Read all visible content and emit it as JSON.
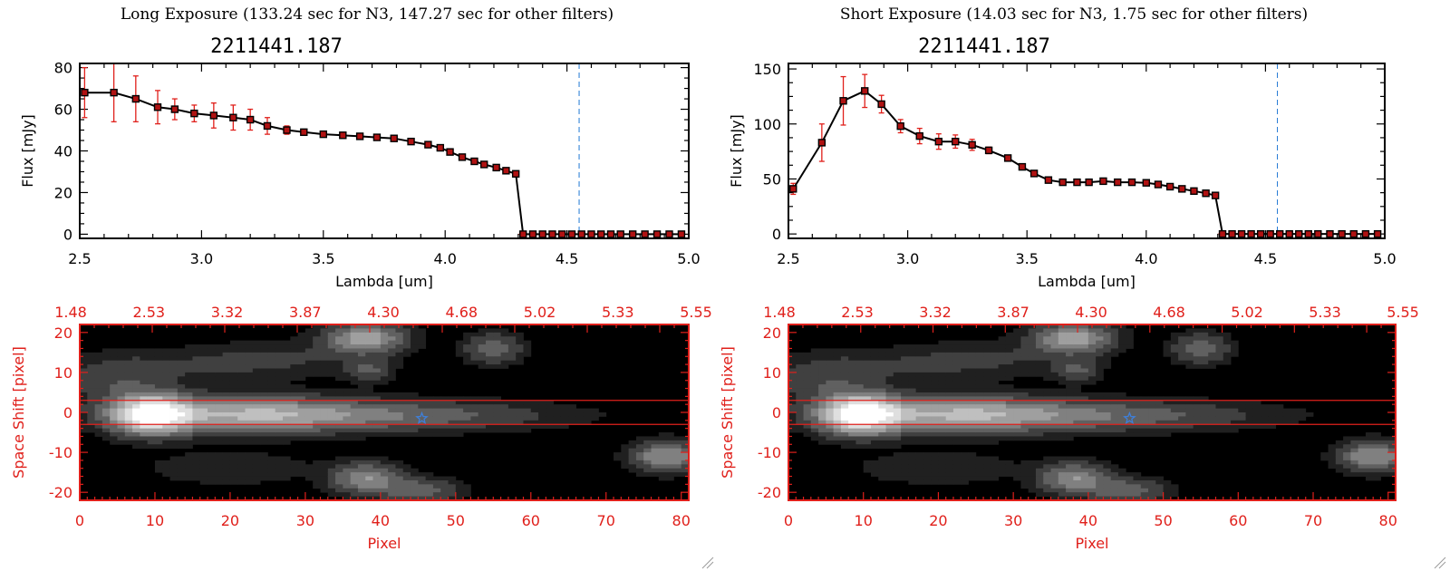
{
  "colors": {
    "frame": "#000000",
    "error_bars": "#e0201b",
    "marker_fill": "#b01212",
    "marker_edge": "#000000",
    "reference_line": "#1f77d4",
    "image_frame": "#e0201b",
    "extraction_box": "#e0201b",
    "star_marker": "#3f7fd8"
  },
  "panels": [
    {
      "title": "Long Exposure (133.24 sec for N3, 147.27 sec for other filters)",
      "object_id": "2211441.187",
      "spectrum_xlabel": "Lambda [um]",
      "spectrum_ylabel": "Flux [mJy]",
      "image_xlabel": "Pixel",
      "image_ylabel": "Space Shift [pixel]"
    },
    {
      "title": "Short Exposure (14.03 sec for N3, 1.75 sec for other filters)",
      "object_id": "2211441.187",
      "spectrum_xlabel": "Lambda [um]",
      "spectrum_ylabel": "Flux [mJy]",
      "image_xlabel": "Pixel",
      "image_ylabel": "Space Shift [pixel]"
    }
  ],
  "chart_data": [
    {
      "type": "line",
      "title": "2211441.187",
      "xlabel": "Lambda [um]",
      "ylabel": "Flux [mJy]",
      "xlim": [
        2.5,
        5.0
      ],
      "ylim": [
        -2,
        82
      ],
      "xticks": [
        "2.5",
        "3.0",
        "3.5",
        "4.0",
        "4.5",
        "5.0"
      ],
      "yticks": [
        "0",
        "20",
        "40",
        "60",
        "80"
      ],
      "reference_line_x": 4.55,
      "points": [
        {
          "x": 2.52,
          "y": 68,
          "err": 12
        },
        {
          "x": 2.64,
          "y": 68,
          "err": 14
        },
        {
          "x": 2.73,
          "y": 65,
          "err": 11
        },
        {
          "x": 2.82,
          "y": 61,
          "err": 8
        },
        {
          "x": 2.89,
          "y": 60,
          "err": 5
        },
        {
          "x": 2.97,
          "y": 58,
          "err": 4
        },
        {
          "x": 3.05,
          "y": 57,
          "err": 6
        },
        {
          "x": 3.13,
          "y": 56,
          "err": 6
        },
        {
          "x": 3.2,
          "y": 55,
          "err": 5
        },
        {
          "x": 3.27,
          "y": 52,
          "err": 4
        },
        {
          "x": 3.35,
          "y": 50,
          "err": 2
        },
        {
          "x": 3.42,
          "y": 49,
          "err": 0
        },
        {
          "x": 3.5,
          "y": 48,
          "err": 0
        },
        {
          "x": 3.58,
          "y": 47.5,
          "err": 0
        },
        {
          "x": 3.65,
          "y": 47,
          "err": 0
        },
        {
          "x": 3.72,
          "y": 46.5,
          "err": 0
        },
        {
          "x": 3.79,
          "y": 46,
          "err": 0
        },
        {
          "x": 3.86,
          "y": 44.5,
          "err": 0
        },
        {
          "x": 3.93,
          "y": 43,
          "err": 0
        },
        {
          "x": 3.98,
          "y": 41.5,
          "err": 0
        },
        {
          "x": 4.02,
          "y": 39.5,
          "err": 0
        },
        {
          "x": 4.07,
          "y": 37,
          "err": 0
        },
        {
          "x": 4.12,
          "y": 35,
          "err": 0
        },
        {
          "x": 4.16,
          "y": 33.5,
          "err": 0
        },
        {
          "x": 4.21,
          "y": 32,
          "err": 0
        },
        {
          "x": 4.25,
          "y": 30.5,
          "err": 0
        },
        {
          "x": 4.29,
          "y": 29,
          "err": 0
        },
        {
          "x": 4.32,
          "y": 0,
          "err": 0
        },
        {
          "x": 4.36,
          "y": 0,
          "err": 0
        },
        {
          "x": 4.4,
          "y": 0,
          "err": 0
        },
        {
          "x": 4.44,
          "y": 0,
          "err": 0
        },
        {
          "x": 4.48,
          "y": 0,
          "err": 0
        },
        {
          "x": 4.52,
          "y": 0,
          "err": 0
        },
        {
          "x": 4.56,
          "y": 0,
          "err": 0
        },
        {
          "x": 4.6,
          "y": 0,
          "err": 0
        },
        {
          "x": 4.64,
          "y": 0,
          "err": 0
        },
        {
          "x": 4.68,
          "y": 0,
          "err": 0
        },
        {
          "x": 4.72,
          "y": 0,
          "err": 0
        },
        {
          "x": 4.77,
          "y": 0,
          "err": 0
        },
        {
          "x": 4.82,
          "y": 0,
          "err": 0
        },
        {
          "x": 4.87,
          "y": 0,
          "err": 0
        },
        {
          "x": 4.92,
          "y": 0,
          "err": 0
        },
        {
          "x": 4.97,
          "y": 0,
          "err": 0
        }
      ]
    },
    {
      "type": "line",
      "title": "2211441.187",
      "xlabel": "Lambda [um]",
      "ylabel": "Flux [mJy]",
      "xlim": [
        2.5,
        5.0
      ],
      "ylim": [
        -4,
        155
      ],
      "xticks": [
        "2.5",
        "3.0",
        "3.5",
        "4.0",
        "4.5",
        "5.0"
      ],
      "yticks": [
        "0",
        "50",
        "100",
        "150"
      ],
      "reference_line_x": 4.55,
      "points": [
        {
          "x": 2.52,
          "y": 41,
          "err": 5
        },
        {
          "x": 2.64,
          "y": 83,
          "err": 17
        },
        {
          "x": 2.73,
          "y": 121,
          "err": 22
        },
        {
          "x": 2.82,
          "y": 130,
          "err": 15
        },
        {
          "x": 2.89,
          "y": 118,
          "err": 8
        },
        {
          "x": 2.97,
          "y": 98,
          "err": 6
        },
        {
          "x": 3.05,
          "y": 89,
          "err": 7
        },
        {
          "x": 3.13,
          "y": 84,
          "err": 7
        },
        {
          "x": 3.2,
          "y": 84,
          "err": 6
        },
        {
          "x": 3.27,
          "y": 81,
          "err": 5
        },
        {
          "x": 3.34,
          "y": 76,
          "err": 3
        },
        {
          "x": 3.42,
          "y": 69,
          "err": 0
        },
        {
          "x": 3.48,
          "y": 61,
          "err": 0
        },
        {
          "x": 3.53,
          "y": 55,
          "err": 0
        },
        {
          "x": 3.59,
          "y": 49,
          "err": 0
        },
        {
          "x": 3.65,
          "y": 47,
          "err": 0
        },
        {
          "x": 3.71,
          "y": 47,
          "err": 0
        },
        {
          "x": 3.76,
          "y": 47,
          "err": 0
        },
        {
          "x": 3.82,
          "y": 48,
          "err": 0
        },
        {
          "x": 3.88,
          "y": 47,
          "err": 0
        },
        {
          "x": 3.94,
          "y": 47,
          "err": 0
        },
        {
          "x": 4.0,
          "y": 46.5,
          "err": 0
        },
        {
          "x": 4.05,
          "y": 45,
          "err": 0
        },
        {
          "x": 4.1,
          "y": 43,
          "err": 0
        },
        {
          "x": 4.15,
          "y": 41,
          "err": 0
        },
        {
          "x": 4.2,
          "y": 39,
          "err": 0
        },
        {
          "x": 4.25,
          "y": 37,
          "err": 0
        },
        {
          "x": 4.29,
          "y": 35,
          "err": 0
        },
        {
          "x": 4.32,
          "y": 0,
          "err": 0
        },
        {
          "x": 4.36,
          "y": 0,
          "err": 0
        },
        {
          "x": 4.4,
          "y": 0,
          "err": 0
        },
        {
          "x": 4.44,
          "y": 0,
          "err": 0
        },
        {
          "x": 4.48,
          "y": 0,
          "err": 0
        },
        {
          "x": 4.52,
          "y": 0,
          "err": 0
        },
        {
          "x": 4.56,
          "y": 0,
          "err": 0
        },
        {
          "x": 4.6,
          "y": 0,
          "err": 0
        },
        {
          "x": 4.64,
          "y": 0,
          "err": 0
        },
        {
          "x": 4.68,
          "y": 0,
          "err": 0
        },
        {
          "x": 4.72,
          "y": 0,
          "err": 0
        },
        {
          "x": 4.77,
          "y": 0,
          "err": 0
        },
        {
          "x": 4.82,
          "y": 0,
          "err": 0
        },
        {
          "x": 4.87,
          "y": 0,
          "err": 0
        },
        {
          "x": 4.92,
          "y": 0,
          "err": 0
        },
        {
          "x": 4.97,
          "y": 0,
          "err": 0
        }
      ]
    },
    {
      "type": "heatmap",
      "xlabel": "Pixel",
      "ylabel": "Space Shift [pixel]",
      "xlim": [
        0,
        81
      ],
      "ylim": [
        -22,
        22
      ],
      "xticks": [
        "0",
        "10",
        "20",
        "30",
        "40",
        "50",
        "60",
        "70",
        "80"
      ],
      "yticks": [
        "20",
        "10",
        "0",
        "-10",
        "-20"
      ],
      "top_axis_ticks": [
        "1.48",
        "2.53",
        "3.32",
        "3.87",
        "4.30",
        "4.68",
        "5.02",
        "5.33",
        "5.55"
      ],
      "extraction_band": [
        -3,
        3
      ],
      "star_position": {
        "x": 45.5,
        "y": -1.5
      },
      "sources": [
        {
          "x": 9.5,
          "y": -0.5,
          "peak": 1.0,
          "sx": 3.5,
          "sy": 3.2
        },
        {
          "x": 22,
          "y": -0.5,
          "peak": 0.55,
          "sx": 10,
          "sy": 3.0
        },
        {
          "x": 42,
          "y": -0.8,
          "peak": 0.28,
          "sx": 14,
          "sy": 2.5
        },
        {
          "x": 5,
          "y": 8,
          "peak": 0.18,
          "sx": 5,
          "sy": 4
        },
        {
          "x": 38,
          "y": 18.5,
          "peak": 0.55,
          "sx": 3.5,
          "sy": 2.5
        },
        {
          "x": 55,
          "y": 16,
          "peak": 0.3,
          "sx": 2.5,
          "sy": 2.5
        },
        {
          "x": 38.5,
          "y": 10.5,
          "peak": 0.22,
          "sx": 2,
          "sy": 2
        },
        {
          "x": 38,
          "y": -16.5,
          "peak": 0.45,
          "sx": 3,
          "sy": 2.5
        },
        {
          "x": 45,
          "y": -19.5,
          "peak": 0.3,
          "sx": 3.5,
          "sy": 2
        },
        {
          "x": 78,
          "y": -11,
          "peak": 0.48,
          "sx": 3,
          "sy": 2.5
        },
        {
          "x": 18,
          "y": 12,
          "peak": 0.1,
          "sx": 9,
          "sy": 3
        },
        {
          "x": 28,
          "y": 14,
          "peak": 0.08,
          "sx": 7,
          "sy": 3
        },
        {
          "x": 20,
          "y": -14,
          "peak": 0.09,
          "sx": 8,
          "sy": 3
        }
      ]
    },
    {
      "type": "heatmap",
      "xlabel": "Pixel",
      "ylabel": "Space Shift [pixel]",
      "xlim": [
        0,
        81
      ],
      "ylim": [
        -22,
        22
      ],
      "xticks": [
        "0",
        "10",
        "20",
        "30",
        "40",
        "50",
        "60",
        "70",
        "80"
      ],
      "yticks": [
        "20",
        "10",
        "0",
        "-10",
        "-20"
      ],
      "top_axis_ticks": [
        "1.48",
        "2.53",
        "3.32",
        "3.87",
        "4.30",
        "4.68",
        "5.02",
        "5.33",
        "5.55"
      ],
      "extraction_band": [
        -3,
        3
      ],
      "star_position": {
        "x": 45.5,
        "y": -1.5
      },
      "sources": [
        {
          "x": 9.5,
          "y": -0.5,
          "peak": 1.0,
          "sx": 3.5,
          "sy": 3.2
        },
        {
          "x": 22,
          "y": -0.5,
          "peak": 0.55,
          "sx": 10,
          "sy": 3.0
        },
        {
          "x": 42,
          "y": -0.8,
          "peak": 0.28,
          "sx": 14,
          "sy": 2.5
        },
        {
          "x": 5,
          "y": 8,
          "peak": 0.18,
          "sx": 5,
          "sy": 4
        },
        {
          "x": 38,
          "y": 18.5,
          "peak": 0.55,
          "sx": 3.5,
          "sy": 2.5
        },
        {
          "x": 55,
          "y": 16,
          "peak": 0.3,
          "sx": 2.5,
          "sy": 2.5
        },
        {
          "x": 38.5,
          "y": 10.5,
          "peak": 0.22,
          "sx": 2,
          "sy": 2
        },
        {
          "x": 38,
          "y": -16.5,
          "peak": 0.45,
          "sx": 3,
          "sy": 2.5
        },
        {
          "x": 45,
          "y": -19.5,
          "peak": 0.3,
          "sx": 3.5,
          "sy": 2
        },
        {
          "x": 78,
          "y": -11,
          "peak": 0.48,
          "sx": 3,
          "sy": 2.5
        },
        {
          "x": 18,
          "y": 12,
          "peak": 0.1,
          "sx": 9,
          "sy": 3
        },
        {
          "x": 28,
          "y": 14,
          "peak": 0.08,
          "sx": 7,
          "sy": 3
        },
        {
          "x": 20,
          "y": -14,
          "peak": 0.09,
          "sx": 8,
          "sy": 3
        }
      ]
    }
  ]
}
